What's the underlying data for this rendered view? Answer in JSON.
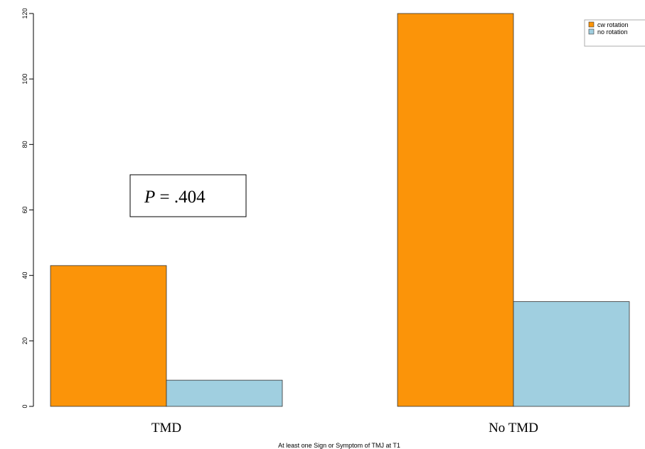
{
  "chart_data": {
    "type": "bar",
    "categories": [
      "TMD",
      "No TMD"
    ],
    "series": [
      {
        "name": "cw rotation",
        "color": "#FB9409",
        "values": [
          43,
          120
        ]
      },
      {
        "name": "no rotation",
        "color": "#A0CFE0",
        "values": [
          8,
          32
        ]
      }
    ],
    "xlabel": "At least one Sign or Symptom of TMJ at T1",
    "ylabel": "",
    "ylim": [
      0,
      120
    ],
    "yticks": [
      0,
      20,
      40,
      60,
      80,
      100,
      120
    ],
    "legend_position": "top-right",
    "grid": false,
    "annotation": {
      "p_symbol": "P",
      "p_text": " = .404"
    }
  }
}
